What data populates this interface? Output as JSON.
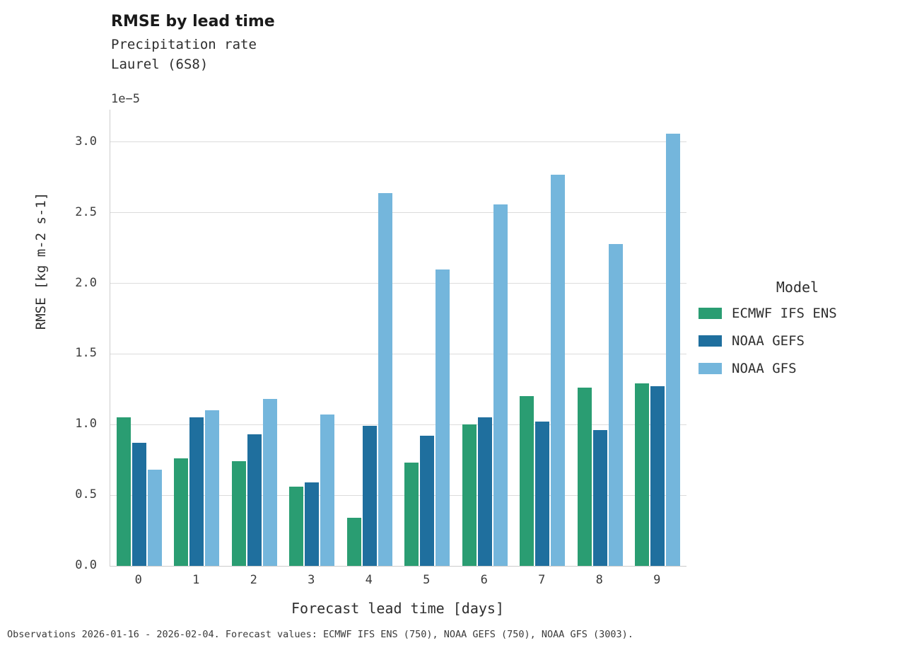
{
  "header": {
    "title": "RMSE by lead time",
    "subtitle1": "Precipitation rate",
    "subtitle2": "Laurel (6S8)"
  },
  "footer": {
    "text": "Observations 2026-01-16 - 2026-02-04. Forecast values: ECMWF IFS ENS (750), NOAA GEFS (750), NOAA GFS (3003)."
  },
  "chart_data": {
    "type": "bar",
    "title": "RMSE by lead time",
    "subtitle": [
      "Precipitation rate",
      "Laurel (6S8)"
    ],
    "xlabel": "Forecast lead time [days]",
    "ylabel": "RMSE [kg m-2 s-1]",
    "offset_text": "1e−5",
    "value_scale": "1e-5",
    "ylim": [
      0,
      3.23
    ],
    "yticks": [
      0.0,
      0.5,
      1.0,
      1.5,
      2.0,
      2.5,
      3.0
    ],
    "grid": "horizontal",
    "categories": [
      "0",
      "1",
      "2",
      "3",
      "4",
      "5",
      "6",
      "7",
      "8",
      "9"
    ],
    "legend_title": "Model",
    "legend_position": "right",
    "series": [
      {
        "name": "ECMWF IFS ENS",
        "color": "#2a9d72",
        "values": [
          1.05,
          0.76,
          0.74,
          0.56,
          0.34,
          0.73,
          1.0,
          1.2,
          1.26,
          1.29
        ]
      },
      {
        "name": "NOAA GEFS",
        "color": "#1f6f9e",
        "values": [
          0.87,
          1.05,
          0.93,
          0.59,
          0.99,
          0.92,
          1.05,
          1.02,
          0.96,
          1.27
        ]
      },
      {
        "name": "NOAA GFS",
        "color": "#74b6dc",
        "values": [
          0.68,
          1.1,
          1.18,
          1.07,
          2.64,
          2.1,
          2.56,
          2.77,
          2.28,
          3.06
        ]
      }
    ]
  }
}
